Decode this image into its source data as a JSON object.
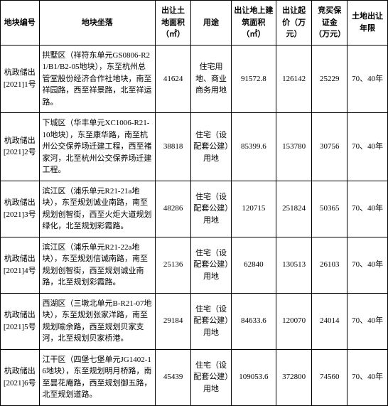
{
  "columns": [
    "地块编号",
    "地块坐落",
    "出让土地面积（㎡）",
    "用途",
    "出让地上建筑面积（㎡）",
    "出让起价（万元）",
    "竞买保证金（万元）",
    "土地出让年限"
  ],
  "rows": [
    {
      "id": "杭政储出[2021]1号",
      "location": "拱墅区（祥符东单元GS0806-R21/B1/B2-05地块），东至杭州总管堂股份经济合作社地块，南至祥园路，西至祥景路，北至祥运路。",
      "land_area": "41624",
      "use": "住宅用地、商业商务用地",
      "build_area": "91572.8",
      "start_price": "126142",
      "deposit": "25229",
      "term": "70、40年"
    },
    {
      "id": "杭政储出[2021]2号",
      "location": "下城区（华丰单元XC1006-R21-10地块），东至康华路，南至杭州公交保养场迁建工程，西至褚家河，北至杭州公交保养场迁建工程。",
      "land_area": "38818",
      "use": "住宅（设配套公建）用地",
      "build_area": "85399.6",
      "start_price": "153780",
      "deposit": "30756",
      "term": "70、40年"
    },
    {
      "id": "杭政储出[2021]3号",
      "location": "滨江区（浦乐单元R21-21a地块），东至规划诚业南路，南至规划创智街，西至火炬大道规划绿化，北至规划彩霞路。",
      "land_area": "48286",
      "use": "住宅（设配套公建）用地",
      "build_area": "120715",
      "start_price": "251824",
      "deposit": "50365",
      "term": "70、40年"
    },
    {
      "id": "杭政储出[2021]4号",
      "location": "滨江区（浦乐单元R21-22a地块），东至规划信诚南路，南至规划创智街，西至规划诚业南路，北至规划彩霞路。",
      "land_area": "25136",
      "use": "住宅（设配套公建）用地",
      "build_area": "62840",
      "start_price": "130513",
      "deposit": "26103",
      "term": "70、40年"
    },
    {
      "id": "杭政储出[2021]5号",
      "location": "西湖区（三墩北单元B-R21-07地块），东至规划张家洋路，南至规划喻余路，西至规划贝家支河，北至规划贝家桥港。",
      "land_area": "29184",
      "use": "住宅（设配套公建）用地",
      "build_area": "84633.6",
      "start_price": "120070",
      "deposit": "24014",
      "term": "70、40年"
    },
    {
      "id": "杭政储出[2021]6号",
      "location": "江干区（四堡七堡单元JG1402-16地块），东至规划明月桥路，南至昙花庵路，西至规划御五路，北至规划道路。",
      "land_area": "45439",
      "use": "住宅（设配套公建）用地",
      "build_area": "109053.6",
      "start_price": "372800",
      "deposit": "74560",
      "term": "70、40年"
    }
  ]
}
